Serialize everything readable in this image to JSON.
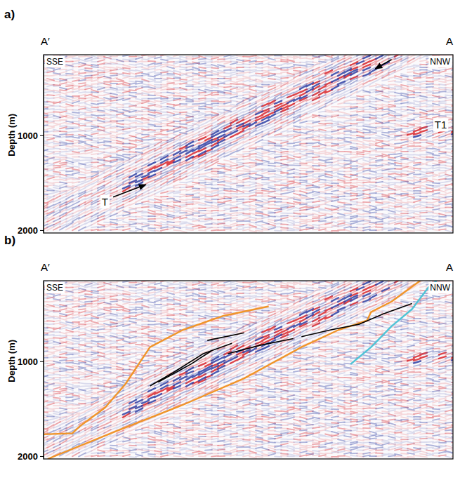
{
  "chart_data": [
    {
      "type": "seismic",
      "title": "a)",
      "profile_start": "A′",
      "profile_end": "A",
      "direction_start": "SSE",
      "direction_end": "NNW",
      "y_label": "Depth (m)",
      "xlim": [
        0,
        1
      ],
      "ylim": [
        150,
        2030
      ],
      "yticks": [
        1000,
        2000
      ],
      "tick_labels": "y",
      "annotations": [
        {
          "text": "T",
          "x": 0.15,
          "y": 1700
        },
        {
          "text": "T1",
          "x": 0.97,
          "y": 890
        }
      ],
      "arrows": [
        {
          "from": [
            0.85,
            200
          ],
          "to": [
            0.81,
            300
          ]
        },
        {
          "from": [
            0.17,
            1650
          ],
          "to": [
            0.25,
            1520
          ]
        }
      ]
    },
    {
      "type": "seismic",
      "title": "b)",
      "profile_start": "A′",
      "profile_end": "A",
      "direction_start": "SSE",
      "direction_end": "NNW",
      "y_label": "Depth (m)",
      "xlim": [
        0,
        1
      ],
      "ylim": [
        150,
        2030
      ],
      "yticks": [
        1000,
        2000
      ],
      "tick_labels": "y",
      "series": [
        {
          "type": "line",
          "color": "#f0952a",
          "x": [
            0,
            0.07,
            0.09,
            0.15,
            0.2,
            0.26,
            0.34,
            0.44,
            0.55
          ],
          "values": [
            1770,
            1760,
            1680,
            1490,
            1240,
            850,
            670,
            520,
            420
          ]
        },
        {
          "type": "line",
          "color": "#f0952a",
          "x": [
            0.01,
            0.17,
            0.34,
            0.49,
            0.63,
            0.72,
            0.79,
            0.8,
            0.85,
            0.92
          ],
          "values": [
            2030,
            1750,
            1460,
            1180,
            850,
            670,
            570,
            480,
            370,
            150
          ]
        },
        {
          "type": "line",
          "color": "#4fc4d6",
          "x": [
            0.75,
            0.8,
            0.85,
            0.9,
            0.94,
            0.96
          ],
          "values": [
            1030,
            850,
            630,
            450,
            220,
            150
          ]
        },
        {
          "type": "line",
          "color": "#000000",
          "x": [
            0.26,
            0.32,
            0.39,
            0.46
          ],
          "values": [
            1260,
            1110,
            920,
            810
          ]
        },
        {
          "type": "line",
          "color": "#000000",
          "x": [
            0.28,
            0.36,
            0.41
          ],
          "values": [
            1220,
            1030,
            890
          ]
        },
        {
          "type": "line",
          "color": "#000000",
          "x": [
            0.4,
            0.49
          ],
          "values": [
            780,
            700
          ]
        },
        {
          "type": "line",
          "color": "#000000",
          "x": [
            0.45,
            0.53,
            0.61
          ],
          "values": [
            920,
            830,
            760
          ]
        },
        {
          "type": "line",
          "color": "#000000",
          "x": [
            0.63,
            0.7,
            0.77,
            0.83,
            0.9
          ],
          "values": [
            740,
            670,
            610,
            500,
            390
          ]
        }
      ]
    }
  ]
}
